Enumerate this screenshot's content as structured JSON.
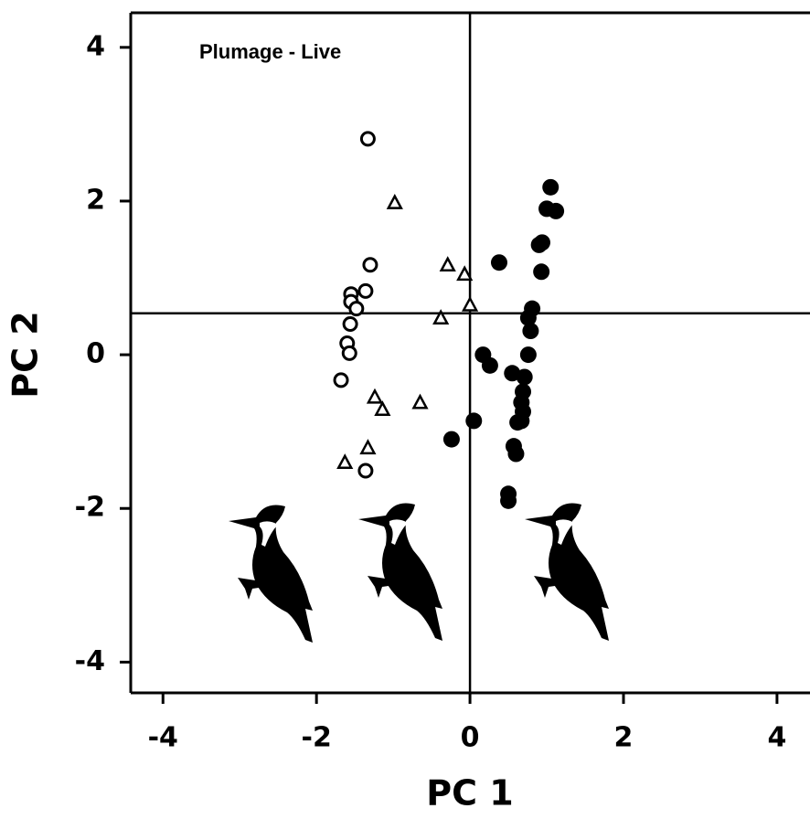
{
  "chart_data": {
    "type": "scatter",
    "annotation": "Plumage - Live",
    "x_label": "PC 1",
    "y_label": "PC 2",
    "xlim": [
      -4.42,
      4.43
    ],
    "ylim": [
      -4.4,
      4.45
    ],
    "xticks": [
      -4,
      -2,
      0,
      2,
      4
    ],
    "yticks": [
      -4,
      -2,
      0,
      2,
      4
    ],
    "hline": 0.54,
    "vline": 0,
    "series": [
      {
        "color": "#000000",
        "marker": "open-circle",
        "x": [
          -1.33,
          -1.3,
          -1.36,
          -1.55,
          -1.55,
          -1.48,
          -1.56,
          -1.6,
          -1.57,
          -1.68,
          -1.36
        ],
        "values": [
          2.81,
          1.17,
          0.83,
          0.79,
          0.69,
          0.6,
          0.4,
          0.15,
          0.02,
          -0.33,
          -1.51
        ]
      },
      {
        "color": "#000000",
        "marker": "triangle",
        "x": [
          -0.98,
          -0.29,
          -0.07,
          0.0,
          -0.38,
          -1.24,
          -1.14,
          -0.65,
          -1.33,
          -1.63
        ],
        "values": [
          1.98,
          1.17,
          1.05,
          0.65,
          0.48,
          -0.55,
          -0.71,
          -0.62,
          -1.21,
          -1.4
        ]
      },
      {
        "color": "#000000",
        "marker": "filled-circle",
        "x": [
          1.05,
          1.0,
          1.12,
          0.94,
          0.9,
          0.93,
          0.38,
          0.81,
          0.76,
          0.79,
          0.76,
          0.17,
          0.26,
          0.55,
          0.71,
          0.69,
          0.67,
          0.69,
          0.67,
          0.62,
          0.05,
          -0.24,
          0.57,
          0.6,
          0.5,
          0.5
        ],
        "values": [
          2.18,
          1.9,
          1.87,
          1.46,
          1.43,
          1.08,
          1.2,
          0.6,
          0.48,
          0.31,
          0.0,
          0.0,
          -0.14,
          -0.24,
          -0.29,
          -0.48,
          -0.62,
          -0.74,
          -0.86,
          -0.88,
          -0.86,
          -1.1,
          -1.19,
          -1.29,
          -1.81,
          -1.9
        ]
      }
    ]
  }
}
